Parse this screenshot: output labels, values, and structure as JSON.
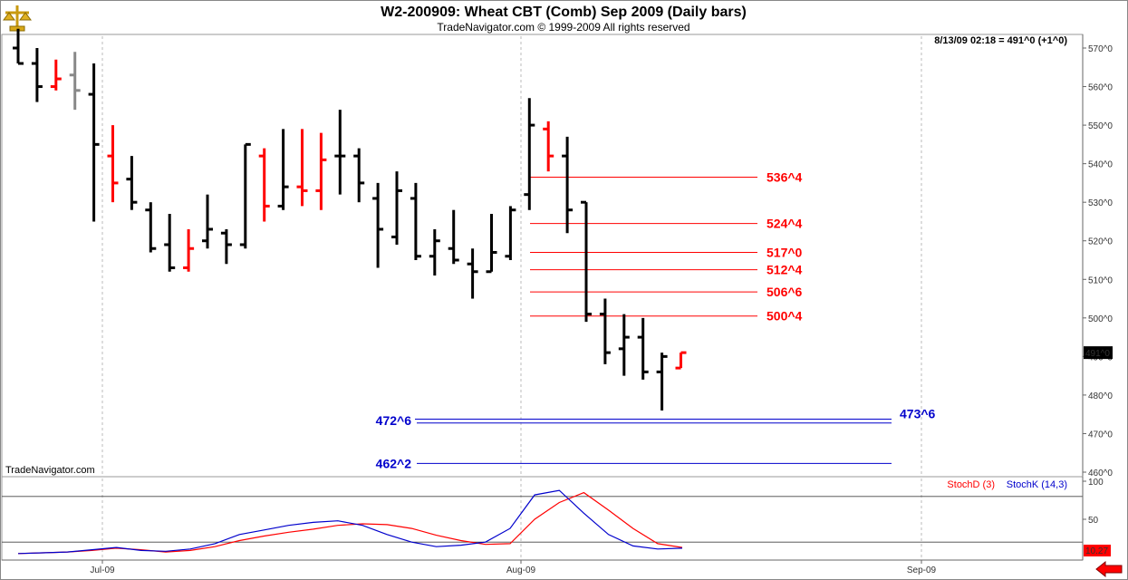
{
  "header": {
    "title": "W2-200909:  Wheat CBT (Comb) Sep 2009  (Daily bars)",
    "copyright": "TradeNavigator.com © 1999-2009 All rights reserved",
    "timestamp": "8/13/09 02:18 = 491^0 (+1^0)",
    "watermark": "TradeNavigator.com"
  },
  "colors": {
    "up": "#ff0000",
    "down": "#000000",
    "resistance": "#ff0000",
    "support": "#0000cc",
    "stochD": "#ff0000",
    "stochK": "#0000cc",
    "price_tag_bg": "#000000"
  },
  "icons": {
    "logo": "brass-scale-icon",
    "nav": "red-left-arrow-icon"
  },
  "chart_data": [
    {
      "type": "ohlc",
      "ylim": [
        458,
        575
      ],
      "yticks": [
        "460^0",
        "470^0",
        "480^0",
        "490^0",
        "500^0",
        "510^0",
        "520^0",
        "530^0",
        "540^0",
        "550^0",
        "560^0",
        "570^0"
      ],
      "xticks": [
        "Jul-09",
        "Aug-09",
        "Sep-09"
      ],
      "last_price_label": "491^0",
      "bars": [
        {
          "o": 570,
          "h": 575,
          "l": 566,
          "c": 566,
          "col": "black"
        },
        {
          "o": 566,
          "h": 570,
          "l": 556,
          "c": 560,
          "col": "black"
        },
        {
          "o": 560,
          "h": 567,
          "l": 559,
          "c": 562,
          "col": "red"
        },
        {
          "o": 563,
          "h": 569,
          "l": 554,
          "c": 559,
          "col": "gray"
        },
        {
          "o": 558,
          "h": 566,
          "l": 525,
          "c": 545,
          "col": "black"
        },
        {
          "o": 542,
          "h": 550,
          "l": 530,
          "c": 535,
          "col": "red"
        },
        {
          "o": 536,
          "h": 542,
          "l": 528,
          "c": 530,
          "col": "black"
        },
        {
          "o": 528,
          "h": 530,
          "l": 517,
          "c": 518,
          "col": "black"
        },
        {
          "o": 519,
          "h": 527,
          "l": 512,
          "c": 513,
          "col": "black"
        },
        {
          "o": 513,
          "h": 523,
          "l": 512,
          "c": 518,
          "col": "red"
        },
        {
          "o": 520,
          "h": 532,
          "l": 518,
          "c": 523,
          "col": "black"
        },
        {
          "o": 522,
          "h": 523,
          "l": 514,
          "c": 519,
          "col": "black"
        },
        {
          "o": 519,
          "h": 545,
          "l": 518,
          "c": 545,
          "col": "black"
        },
        {
          "o": 542,
          "h": 544,
          "l": 525,
          "c": 529,
          "col": "red"
        },
        {
          "o": 529,
          "h": 549,
          "l": 528,
          "c": 534,
          "col": "black"
        },
        {
          "o": 534,
          "h": 549,
          "l": 529,
          "c": 533,
          "col": "red"
        },
        {
          "o": 533,
          "h": 548,
          "l": 528,
          "c": 541,
          "col": "red"
        },
        {
          "o": 542,
          "h": 554,
          "l": 532,
          "c": 542,
          "col": "black"
        },
        {
          "o": 542,
          "h": 544,
          "l": 530,
          "c": 535,
          "col": "black"
        },
        {
          "o": 531,
          "h": 535,
          "l": 513,
          "c": 523,
          "col": "black"
        },
        {
          "o": 521,
          "h": 538,
          "l": 519,
          "c": 533,
          "col": "black"
        },
        {
          "o": 531,
          "h": 535,
          "l": 515,
          "c": 516,
          "col": "black"
        },
        {
          "o": 516,
          "h": 523,
          "l": 511,
          "c": 520,
          "col": "black"
        },
        {
          "o": 518,
          "h": 528,
          "l": 514,
          "c": 515,
          "col": "black"
        },
        {
          "o": 514,
          "h": 518,
          "l": 505,
          "c": 512,
          "col": "black"
        },
        {
          "o": 512,
          "h": 527,
          "l": 512,
          "c": 517,
          "col": "black"
        },
        {
          "o": 516,
          "h": 529,
          "l": 515,
          "c": 528,
          "col": "black"
        },
        {
          "o": 532,
          "h": 557,
          "l": 528,
          "c": 550,
          "col": "black"
        },
        {
          "o": 549,
          "h": 551,
          "l": 538,
          "c": 542,
          "col": "red"
        },
        {
          "o": 542,
          "h": 547,
          "l": 522,
          "c": 528,
          "col": "black"
        },
        {
          "o": 530,
          "h": 530,
          "l": 499,
          "c": 501,
          "col": "black"
        },
        {
          "o": 501,
          "h": 505,
          "l": 488,
          "c": 491,
          "col": "black"
        },
        {
          "o": 492,
          "h": 501,
          "l": 485,
          "c": 495,
          "col": "black"
        },
        {
          "o": 495,
          "h": 500,
          "l": 484,
          "c": 486,
          "col": "black"
        },
        {
          "o": 486,
          "h": 491,
          "l": 476,
          "c": 490,
          "col": "black"
        },
        {
          "o": 487,
          "h": 491,
          "l": 487,
          "c": 491,
          "col": "red"
        }
      ],
      "levels": [
        {
          "label": "536^4",
          "value": 536.5,
          "kind": "resistance"
        },
        {
          "label": "524^4",
          "value": 524.5,
          "kind": "resistance"
        },
        {
          "label": "517^0",
          "value": 517.0,
          "kind": "resistance"
        },
        {
          "label": "512^4",
          "value": 512.5,
          "kind": "resistance"
        },
        {
          "label": "506^6",
          "value": 506.75,
          "kind": "resistance"
        },
        {
          "label": "500^4",
          "value": 500.5,
          "kind": "resistance"
        },
        {
          "label": "473^6",
          "value": 473.75,
          "kind": "support"
        },
        {
          "label": "472^6",
          "value": 472.75,
          "kind": "support"
        },
        {
          "label": "462^2",
          "value": 462.25,
          "kind": "support"
        }
      ]
    },
    {
      "type": "line",
      "ylim": [
        0,
        100
      ],
      "yticks": [
        "100",
        "50"
      ],
      "reference_lines": [
        80,
        20
      ],
      "last_value_label": "10.27",
      "series": [
        {
          "name": "StochD (3)",
          "color": "red",
          "values": [
            5,
            6,
            7,
            9,
            12,
            10,
            7,
            9,
            14,
            22,
            28,
            33,
            37,
            42,
            44,
            43,
            38,
            29,
            22,
            17,
            18,
            50,
            72,
            85,
            62,
            38,
            18,
            13
          ]
        },
        {
          "name": "StochK (14,3)",
          "color": "blue",
          "values": [
            5,
            6,
            7,
            10,
            13,
            9,
            8,
            11,
            18,
            30,
            36,
            42,
            46,
            48,
            42,
            30,
            20,
            14,
            16,
            20,
            38,
            82,
            88,
            58,
            30,
            15,
            11,
            12
          ]
        }
      ]
    }
  ]
}
